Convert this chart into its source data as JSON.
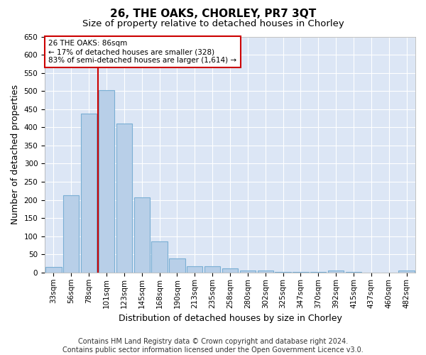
{
  "title": "26, THE OAKS, CHORLEY, PR7 3QT",
  "subtitle": "Size of property relative to detached houses in Chorley",
  "xlabel": "Distribution of detached houses by size in Chorley",
  "ylabel": "Number of detached properties",
  "categories": [
    "33sqm",
    "56sqm",
    "78sqm",
    "101sqm",
    "123sqm",
    "145sqm",
    "168sqm",
    "190sqm",
    "213sqm",
    "235sqm",
    "258sqm",
    "280sqm",
    "302sqm",
    "325sqm",
    "347sqm",
    "370sqm",
    "392sqm",
    "415sqm",
    "437sqm",
    "460sqm",
    "482sqm"
  ],
  "values": [
    15,
    212,
    438,
    503,
    410,
    207,
    85,
    38,
    18,
    17,
    11,
    6,
    5,
    2,
    1,
    1,
    5,
    1,
    0,
    0,
    5
  ],
  "bar_color": "#b8cfe8",
  "bar_edge_color": "#7aafd4",
  "vline_index": 2.5,
  "vline_color": "#cc0000",
  "annotation_text": "26 THE OAKS: 86sqm\n← 17% of detached houses are smaller (328)\n83% of semi-detached houses are larger (1,614) →",
  "annotation_box_color": "#ffffff",
  "annotation_box_edge_color": "#cc0000",
  "ylim": [
    0,
    650
  ],
  "yticks": [
    0,
    50,
    100,
    150,
    200,
    250,
    300,
    350,
    400,
    450,
    500,
    550,
    600,
    650
  ],
  "background_color": "#ffffff",
  "plot_bg_color": "#dce6f5",
  "grid_color": "#ffffff",
  "footer_line1": "Contains HM Land Registry data © Crown copyright and database right 2024.",
  "footer_line2": "Contains public sector information licensed under the Open Government Licence v3.0.",
  "title_fontsize": 11,
  "subtitle_fontsize": 9.5,
  "xlabel_fontsize": 9,
  "ylabel_fontsize": 9,
  "tick_fontsize": 7.5,
  "annotation_fontsize": 7.5,
  "footer_fontsize": 7
}
